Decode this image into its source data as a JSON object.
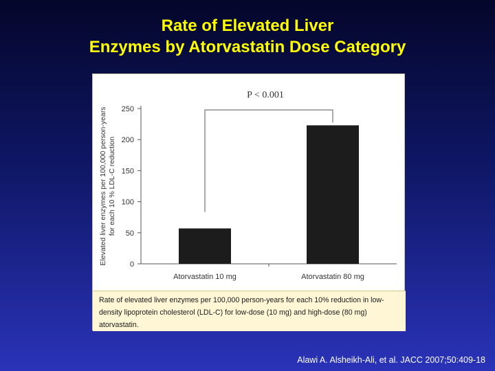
{
  "slide": {
    "title_line1": "Rate of Elevated Liver",
    "title_line2": "Enzymes by Atorvastatin Dose Category",
    "caption": "Rate of elevated liver enzymes per 100,000 person-years for each 10% reduction in low-density lipoprotein cholesterol (LDL-C) for low-dose (10 mg) and high-dose (80 mg) atorvastatin.",
    "citation": "Alawi A. Alsheikh-Ali, et al. JACC 2007;50:409-18"
  },
  "colors": {
    "title": "#ffff00",
    "bar": "#1c1c1c",
    "axis": "#555555"
  },
  "chart_data": {
    "type": "bar",
    "categories": [
      "Atorvastatin 10 mg",
      "Atorvastatin 80 mg"
    ],
    "values": [
      57,
      223
    ],
    "ylabel": "Elevated liver enzymes per 100,000 person-years for each 10 % LDL-C reduction",
    "ylabel_lines": [
      "Elevated liver enzymes per 100,000 person-years",
      "for each 10 % LDL-C reduction"
    ],
    "ylim": [
      0,
      250
    ],
    "yticks": [
      0,
      50,
      100,
      150,
      200,
      250
    ],
    "annotation": "P < 0.001",
    "grid": false
  }
}
